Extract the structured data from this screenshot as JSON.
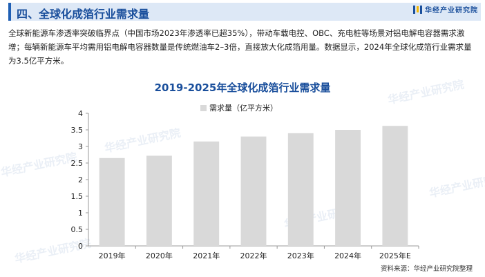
{
  "header": {
    "section_title": "四、全球化成箔行业需求量",
    "logo_text": "华经产业研究院"
  },
  "paragraph": "全球新能源车渗透率突破临界点（中国市场2023年渗透率已超35%），带动车载电控、OBC、充电桩等场景对铝电解电容器需求激增；每辆新能源车平均需用铝电解电容器数量是传统燃油车2–3倍，直接放大化成箔用量。数据显示，2024年全球化成箔行业需求量为3.5亿平方米。",
  "source": "资料来源：华经产业研究院整理",
  "watermark": "华经产业研究院",
  "chart_data": {
    "type": "bar",
    "title": "2019-2025年全球化成箔行业需求量",
    "categories": [
      "2019年",
      "2020年",
      "2021年",
      "2022年",
      "2023年",
      "2024年",
      "2025年E"
    ],
    "series": [
      {
        "name": "需求量（亿平方米）",
        "values": [
          2.65,
          2.72,
          3.15,
          3.3,
          3.4,
          3.5,
          3.62
        ]
      }
    ],
    "ylim": [
      0,
      4
    ],
    "yticks": [
      "0",
      "0.5",
      "1",
      "1.5",
      "2",
      "2.5",
      "3",
      "3.5",
      "4"
    ],
    "legend_position": "top-left",
    "grid": false,
    "bar_color": "#d9d9d9"
  }
}
